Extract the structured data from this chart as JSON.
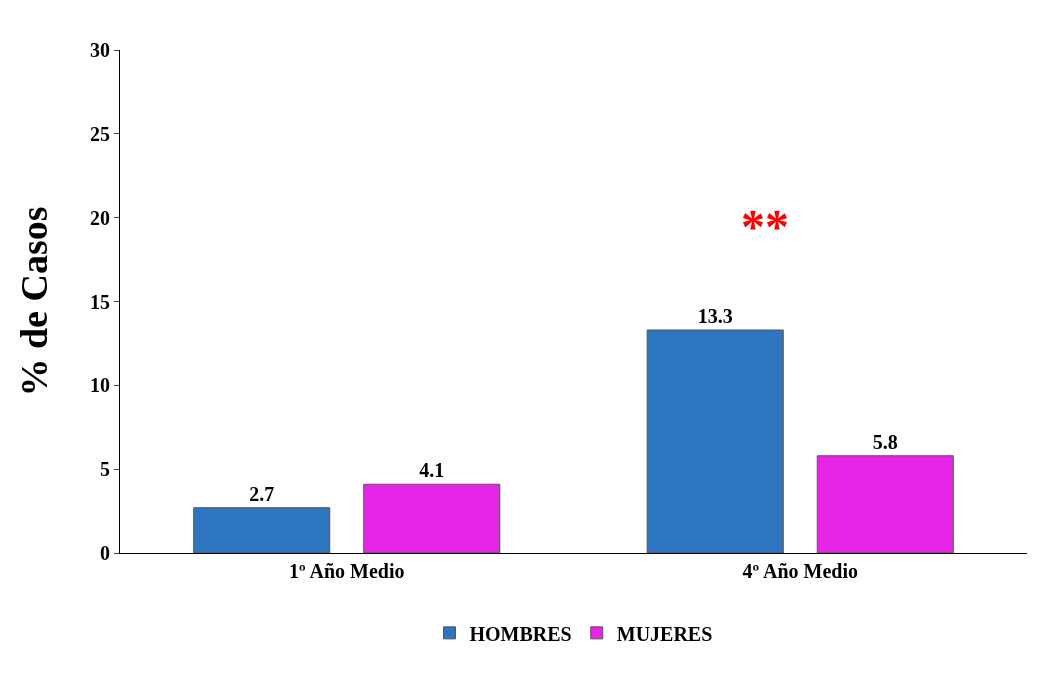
{
  "chart_data": {
    "type": "bar",
    "ylabel": "% de Casos",
    "categories": [
      "1º Año Medio",
      "4º Año Medio"
    ],
    "series": [
      {
        "name": "HOMBRES",
        "color": "#2e75c0",
        "values": [
          2.7,
          13.3
        ]
      },
      {
        "name": "MUJERES",
        "color": "#e625e6",
        "values": [
          4.1,
          5.8
        ]
      }
    ],
    "ylim": [
      0,
      30
    ],
    "yticks": [
      0,
      5,
      10,
      15,
      20,
      25,
      30
    ],
    "legend": "bottom",
    "data_labels": true,
    "annotations": [
      "**"
    ]
  }
}
